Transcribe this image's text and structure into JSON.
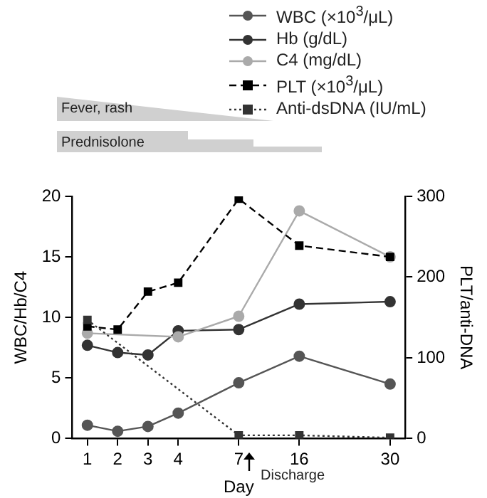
{
  "chart_data": {
    "type": "line",
    "xlabel": "Day",
    "ylabel": "WBC/Hb/C4",
    "y2label": "PLT/anti-DNA",
    "categories": [
      "1",
      "2",
      "3",
      "4",
      null,
      "7",
      null,
      "16",
      null,
      null,
      "30"
    ],
    "series": [
      {
        "name": "WBC (×10$^{3}$/μL)",
        "color": "#555555",
        "marker": "circle",
        "line_style": "solid",
        "values": [
          1.1,
          0.6,
          1.0,
          2.1,
          null,
          4.6,
          null,
          6.8,
          null,
          null,
          4.5
        ]
      },
      {
        "name": "Hb (g/dL)",
        "color": "#333333",
        "marker": "circle",
        "line_style": "solid",
        "values": [
          7.7,
          7.1,
          6.9,
          8.9,
          null,
          9.0,
          null,
          11.1,
          null,
          null,
          11.3
        ]
      },
      {
        "name": "C4 (mg/dL)",
        "color": "#aaaaaa",
        "marker": "circle",
        "line_style": "solid",
        "values": [
          8.7,
          null,
          null,
          8.4,
          null,
          10.1,
          null,
          18.8,
          null,
          null,
          15.0
        ]
      },
      {
        "name": "PLT (×10$^{3}$/μL)",
        "color": "#000000",
        "marker": "square",
        "line_style": "dashed",
        "axis": "y2",
        "values": [
          139,
          135,
          182,
          193,
          null,
          297,
          null,
          239,
          null,
          null,
          225
        ]
      },
      {
        "name": "Anti-dsDNA (IU/mL)",
        "color": "#333333",
        "marker": "square",
        "line_style": "dotted",
        "axis": "y2",
        "values": [
          147,
          null,
          null,
          null,
          null,
          4,
          null,
          4,
          null,
          null,
          1
        ]
      }
    ],
    "ylim": [
      0,
      20
    ],
    "yticks": [
      0,
      5,
      10,
      15,
      20
    ],
    "y2lim": [
      0,
      300
    ],
    "y2ticks": [
      0,
      100,
      200,
      300
    ],
    "grid": false,
    "legend": "top right",
    "annotations": [
      "Fever, rash",
      "Prednisolone",
      "Discharge"
    ]
  }
}
